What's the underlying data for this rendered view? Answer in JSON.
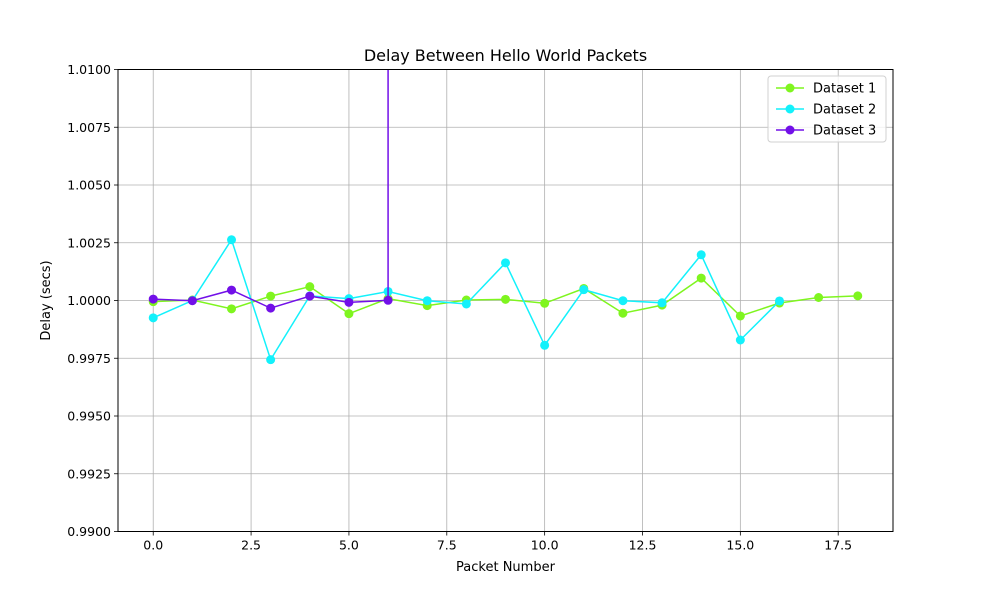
{
  "chart_data": {
    "type": "line",
    "title": "Delay Between Hello World Packets",
    "xlabel": "Packet Number",
    "ylabel": "Delay (secs)",
    "xlim": [
      -0.9,
      18.9
    ],
    "ylim": [
      0.99,
      1.01
    ],
    "xticks": [
      0.0,
      2.5,
      5.0,
      7.5,
      10.0,
      12.5,
      15.0,
      17.5
    ],
    "xtick_labels": [
      "0.0",
      "2.5",
      "5.0",
      "7.5",
      "10.0",
      "12.5",
      "15.0",
      "17.5"
    ],
    "yticks": [
      0.99,
      0.9925,
      0.995,
      0.9975,
      1.0,
      1.0025,
      1.005,
      1.0075,
      1.01
    ],
    "ytick_labels": [
      "0.9900",
      "0.9925",
      "0.9950",
      "0.9975",
      "1.0000",
      "1.0025",
      "1.0050",
      "1.0075",
      "1.0100"
    ],
    "grid": true,
    "legend_position": "top-right",
    "series": [
      {
        "name": "Dataset 1",
        "color": "#7ff51f",
        "marker": "circle",
        "x": [
          0,
          1,
          2,
          3,
          4,
          5,
          6,
          7,
          8,
          9,
          10,
          11,
          12,
          13,
          14,
          15,
          16,
          17,
          18
        ],
        "y": [
          0.99995,
          1.00002,
          0.99964,
          1.00019,
          1.0006,
          0.99943,
          1.00008,
          0.99978,
          1.00002,
          1.00005,
          0.99988,
          1.00052,
          0.99945,
          0.9998,
          1.00097,
          0.99933,
          0.99989,
          1.00013,
          1.0002
        ]
      },
      {
        "name": "Dataset 2",
        "color": "#13f1fb",
        "marker": "circle",
        "x": [
          0,
          1,
          2,
          3,
          4,
          5,
          6,
          7,
          8,
          9,
          10,
          11,
          12,
          13,
          14,
          15,
          16,
          17,
          18
        ],
        "y": [
          0.99925,
          1.0,
          1.00263,
          0.99744,
          1.0002,
          1.00008,
          1.00039,
          0.99999,
          0.99985,
          1.00163,
          0.99806,
          1.00047,
          0.99999,
          0.9999,
          1.00198,
          0.99829,
          0.99998,
          null,
          null
        ]
      },
      {
        "name": "Dataset 3",
        "color": "#7210e8",
        "marker": "circle",
        "x": [
          0,
          1,
          2,
          3,
          4,
          5,
          6,
          6
        ],
        "y": [
          1.00006,
          0.99999,
          1.00045,
          0.99967,
          1.00019,
          0.99992,
          1.00001,
          1.0101
        ]
      }
    ]
  }
}
